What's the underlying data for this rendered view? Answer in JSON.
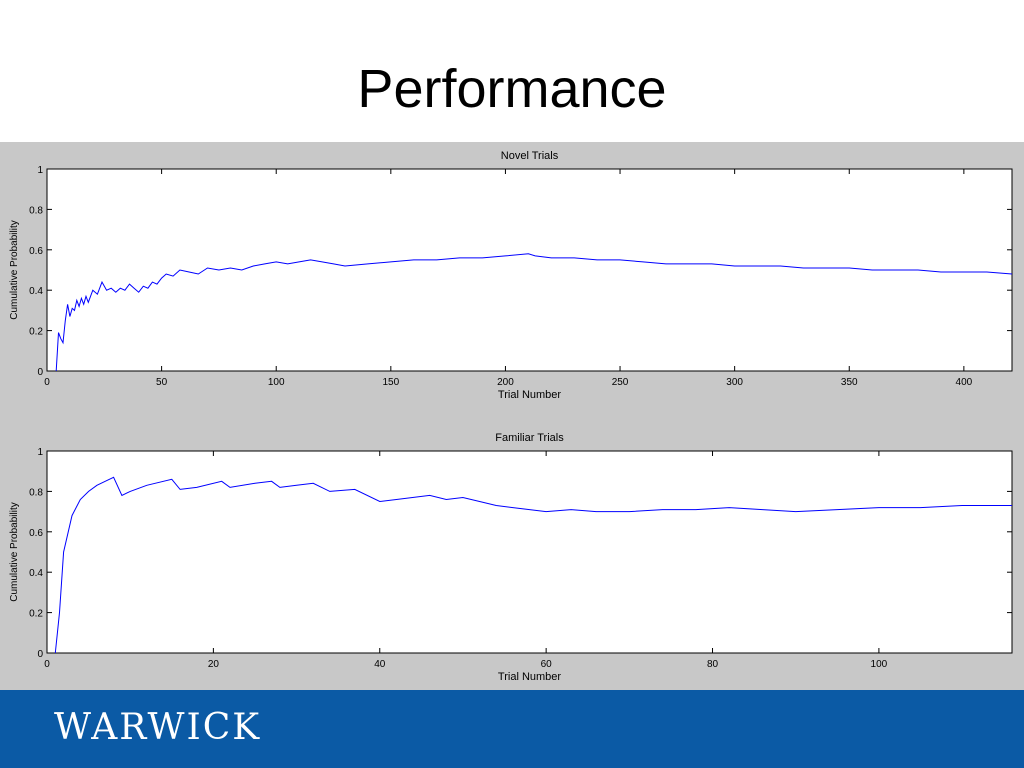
{
  "slide": {
    "title": "Performance",
    "logo_text": "WARWICK",
    "footer_color": "#0b5aa5",
    "figure_background": "#c8c8c8"
  },
  "chart_data": [
    {
      "type": "line",
      "title": "Novel Trials",
      "xlabel": "Trial Number",
      "ylabel": "Cumulative Probability",
      "xlim": [
        0,
        421
      ],
      "ylim": [
        0,
        1
      ],
      "xticks": [
        0,
        50,
        100,
        150,
        200,
        250,
        300,
        350,
        400
      ],
      "yticks": [
        0,
        0.2,
        0.4,
        0.6,
        0.8,
        1
      ],
      "line_color": "#0000ff",
      "series": [
        {
          "x": [
            4,
            5,
            6,
            7,
            8,
            9,
            10,
            11,
            12,
            13,
            14,
            15,
            16,
            17,
            18,
            20,
            22,
            24,
            26,
            28,
            30,
            32,
            34,
            36,
            38,
            40,
            42,
            44,
            46,
            48,
            50,
            52,
            55,
            58,
            62,
            66,
            70,
            75,
            80,
            85,
            90,
            95,
            100,
            105,
            110,
            115,
            120,
            125,
            130,
            140,
            150,
            160,
            170,
            180,
            190,
            200,
            210,
            213,
            220,
            230,
            240,
            250,
            260,
            270,
            280,
            290,
            300,
            310,
            320,
            330,
            340,
            350,
            360,
            370,
            380,
            390,
            400,
            410,
            421
          ],
          "y": [
            0,
            0.19,
            0.16,
            0.14,
            0.25,
            0.33,
            0.27,
            0.31,
            0.3,
            0.35,
            0.32,
            0.36,
            0.33,
            0.37,
            0.34,
            0.4,
            0.38,
            0.44,
            0.4,
            0.41,
            0.39,
            0.41,
            0.4,
            0.43,
            0.41,
            0.39,
            0.42,
            0.41,
            0.44,
            0.43,
            0.46,
            0.48,
            0.47,
            0.5,
            0.49,
            0.48,
            0.51,
            0.5,
            0.51,
            0.5,
            0.52,
            0.53,
            0.54,
            0.53,
            0.54,
            0.55,
            0.54,
            0.53,
            0.52,
            0.53,
            0.54,
            0.55,
            0.55,
            0.56,
            0.56,
            0.57,
            0.58,
            0.57,
            0.56,
            0.56,
            0.55,
            0.55,
            0.54,
            0.53,
            0.53,
            0.53,
            0.52,
            0.52,
            0.52,
            0.51,
            0.51,
            0.51,
            0.5,
            0.5,
            0.5,
            0.49,
            0.49,
            0.49,
            0.48
          ]
        }
      ]
    },
    {
      "type": "line",
      "title": "Familiar Trials",
      "xlabel": "Trial Number",
      "ylabel": "Cumulative Probability",
      "xlim": [
        0,
        116
      ],
      "ylim": [
        0,
        1
      ],
      "xticks": [
        0,
        20,
        40,
        60,
        80,
        100
      ],
      "yticks": [
        0,
        0.2,
        0.4,
        0.6,
        0.8,
        1
      ],
      "line_color": "#0000ff",
      "series": [
        {
          "x": [
            1,
            1.5,
            2,
            3,
            4,
            5,
            6,
            7,
            8,
            9,
            10,
            12,
            15,
            16,
            18,
            21,
            22,
            25,
            27,
            28,
            30,
            32,
            34,
            37,
            40,
            42,
            46,
            48,
            50,
            52,
            54,
            56,
            58,
            60,
            63,
            66,
            70,
            74,
            78,
            82,
            86,
            90,
            95,
            100,
            105,
            110,
            115,
            116
          ],
          "y": [
            0,
            0.2,
            0.5,
            0.68,
            0.76,
            0.8,
            0.83,
            0.85,
            0.87,
            0.78,
            0.8,
            0.83,
            0.86,
            0.81,
            0.82,
            0.85,
            0.82,
            0.84,
            0.85,
            0.82,
            0.83,
            0.84,
            0.8,
            0.81,
            0.75,
            0.76,
            0.78,
            0.76,
            0.77,
            0.75,
            0.73,
            0.72,
            0.71,
            0.7,
            0.71,
            0.7,
            0.7,
            0.71,
            0.71,
            0.72,
            0.71,
            0.7,
            0.71,
            0.72,
            0.72,
            0.73,
            0.73,
            0.73
          ]
        }
      ]
    }
  ]
}
